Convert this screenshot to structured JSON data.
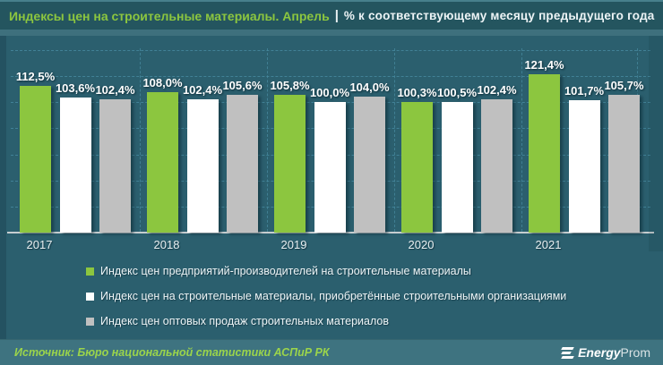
{
  "title": {
    "highlight": "Индексы цен на строительные материалы. Апрель",
    "separator": "|",
    "subtitle": "% к соответствующему  месяцу  предыдущего  года"
  },
  "chart_data": {
    "type": "bar",
    "categories": [
      "2017",
      "2018",
      "2019",
      "2020",
      "2021"
    ],
    "series": [
      {
        "name": "Индекс цен предприятий-производителей на строительные материалы",
        "color": "#8CC63F",
        "values": [
          112.5,
          108.0,
          105.8,
          100.3,
          121.4
        ]
      },
      {
        "name": "Индекс цен на строительные материалы, приобретённые строительными организациями",
        "color": "#FFFFFF",
        "values": [
          103.6,
          102.4,
          100.0,
          100.5,
          101.7
        ]
      },
      {
        "name": "Индекс цен оптовых продаж строительных материалов",
        "color": "#C0C0C0",
        "values": [
          102.4,
          105.6,
          104.0,
          102.4,
          105.7
        ]
      }
    ],
    "value_suffix": "%",
    "decimal_separator": ",",
    "ylim": [
      0,
      140
    ],
    "grid": "dashed-horizontal-and-group-separators",
    "legend_position": "bottom"
  },
  "footer": {
    "source": "Источник: Бюро национальной  статистики АСПиР РК",
    "logo": {
      "bold": "Energy",
      "light": "Prom"
    }
  }
}
